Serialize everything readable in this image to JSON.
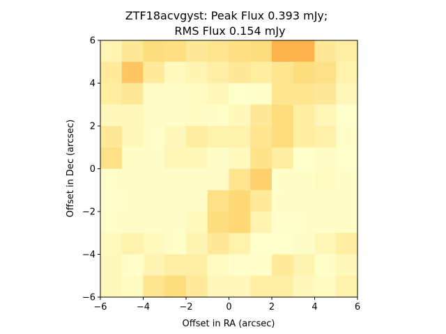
{
  "chart_data": {
    "type": "heatmap",
    "title_line1": "ZTF18acvgyst: Peak Flux 0.393 mJy;",
    "title_line2": "RMS Flux 0.154 mJy",
    "xlabel": "Offset in RA (arcsec)",
    "ylabel": "Offset in Dec (arcsec)",
    "xlim": [
      -6,
      6
    ],
    "ylim": [
      -6,
      6
    ],
    "xticks": [
      "−6",
      "−4",
      "−2",
      "0",
      "2",
      "4",
      "6"
    ],
    "yticks": [
      "−6",
      "−4",
      "−2",
      "0",
      "2",
      "4",
      "6"
    ],
    "grid": false,
    "colormap": [
      "#ffffcc",
      "#ffeda0",
      "#fed976",
      "#feb24c",
      "#fd8d3c"
    ],
    "rows_top_to_bottom": [
      [
        0.15,
        0.3,
        0.45,
        0.42,
        0.3,
        0.35,
        0.42,
        0.45,
        0.75,
        0.75,
        0.3,
        0.22
      ],
      [
        0.28,
        0.62,
        0.28,
        0.08,
        0.15,
        0.22,
        0.3,
        0.25,
        0.35,
        0.45,
        0.4,
        0.18
      ],
      [
        0.25,
        0.3,
        0.03,
        0.03,
        0.05,
        0.1,
        0.0,
        0.02,
        0.35,
        0.35,
        0.3,
        0.1
      ],
      [
        0.1,
        0.1,
        0.03,
        0.03,
        0.05,
        0.02,
        0.1,
        0.3,
        0.45,
        0.25,
        0.12,
        0.0
      ],
      [
        0.3,
        0.1,
        0.02,
        0.1,
        0.25,
        0.18,
        0.18,
        0.35,
        0.45,
        0.25,
        0.2,
        0.02
      ],
      [
        0.4,
        0.03,
        0.03,
        0.12,
        0.12,
        0.03,
        0.08,
        0.38,
        0.25,
        0.0,
        0.04,
        0.0
      ],
      [
        0.02,
        0.04,
        0.03,
        0.03,
        0.03,
        0.03,
        0.35,
        0.55,
        0.02,
        0.02,
        0.06,
        0.02
      ],
      [
        0.01,
        0.02,
        0.02,
        0.03,
        0.03,
        0.4,
        0.5,
        0.28,
        0.02,
        0.02,
        0.02,
        0.02
      ],
      [
        0.02,
        0.02,
        0.02,
        0.03,
        0.08,
        0.45,
        0.5,
        0.15,
        0.01,
        0.02,
        0.02,
        0.02
      ],
      [
        0.08,
        0.18,
        0.08,
        0.02,
        0.15,
        0.3,
        0.18,
        0.0,
        0.0,
        0.03,
        0.12,
        0.25
      ],
      [
        0.1,
        0.02,
        0.15,
        0.22,
        0.22,
        0.06,
        0.01,
        0.02,
        0.28,
        0.15,
        0.02,
        0.1
      ],
      [
        0.1,
        0.05,
        0.35,
        0.45,
        0.28,
        0.1,
        0.1,
        0.22,
        0.22,
        0.1,
        0.05,
        0.18
      ]
    ]
  }
}
